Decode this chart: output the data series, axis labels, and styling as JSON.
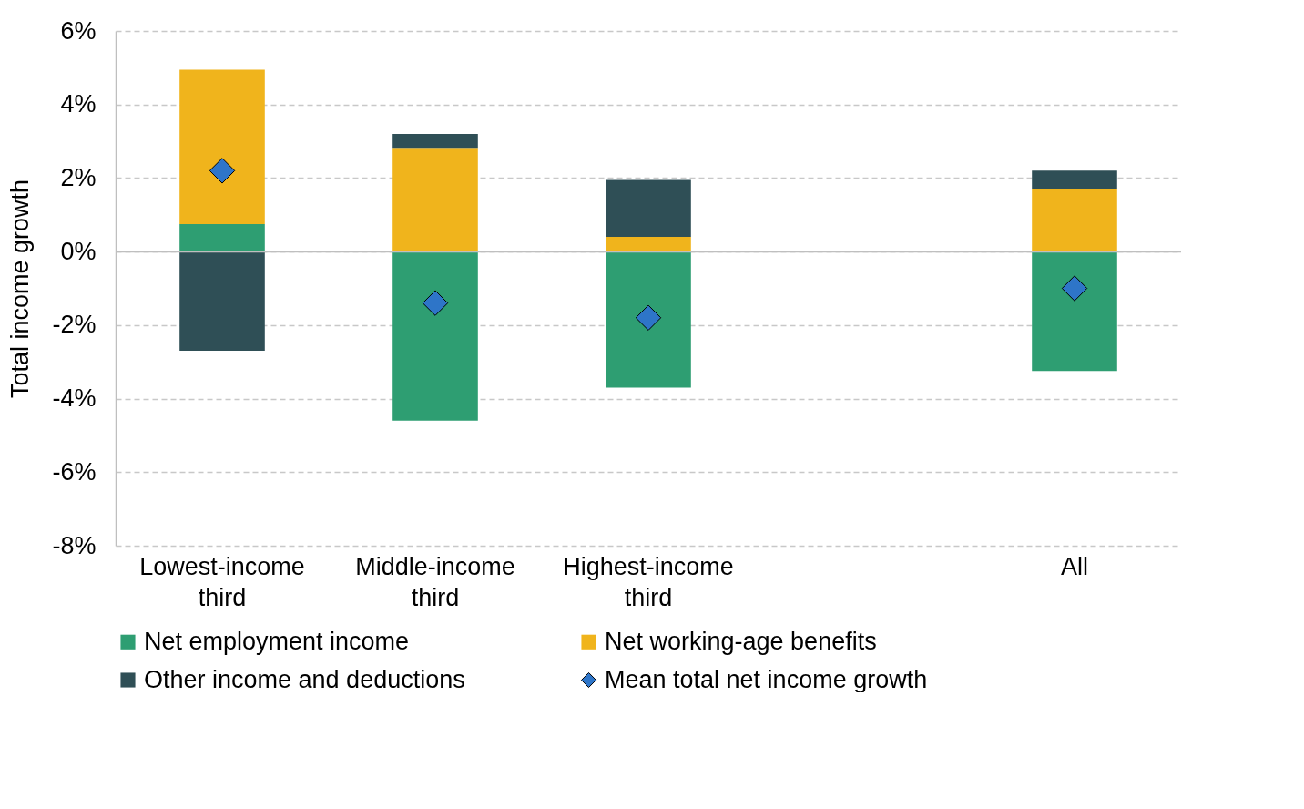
{
  "chart_data": {
    "type": "bar",
    "stacked": true,
    "ylabel": "Total income growth",
    "categories": [
      "Lowest-income third",
      "Middle-income third",
      "Highest-income third",
      null,
      "All"
    ],
    "series": [
      {
        "name": "Net employment income",
        "color": "#2e9e72",
        "values": [
          0.75,
          -4.6,
          -3.7,
          null,
          -3.25
        ]
      },
      {
        "name": "Net working-age benefits",
        "color": "#f0b41c",
        "values": [
          4.2,
          2.8,
          0.4,
          null,
          1.7
        ]
      },
      {
        "name": "Other income and deductions",
        "color": "#2f4f56",
        "values": [
          -2.7,
          0.4,
          1.55,
          null,
          0.5
        ]
      },
      {
        "name": "Mean total net income growth",
        "type": "scatter",
        "marker": "diamond",
        "color": "#2e75c8",
        "x": [
          "Lowest-income third",
          "Middle-income third",
          "Highest-income third",
          "All"
        ],
        "values": [
          2.2,
          -1.4,
          -1.8,
          -1.0
        ]
      }
    ],
    "ylim": [
      -8,
      6
    ],
    "yticks": [
      {
        "value": -8,
        "label": "-8%"
      },
      {
        "value": -6,
        "label": "-6%"
      },
      {
        "value": -4,
        "label": "-4%"
      },
      {
        "value": -2,
        "label": "-2%"
      },
      {
        "value": 0,
        "label": "0%"
      },
      {
        "value": 2,
        "label": "2%"
      },
      {
        "value": 4,
        "label": "4%"
      },
      {
        "value": 6,
        "label": "6%"
      }
    ],
    "ref_lines": [
      {
        "axis": "y",
        "value": 0,
        "color": "#bfbfbf"
      }
    ],
    "grid": "y",
    "legend": "bottom"
  }
}
